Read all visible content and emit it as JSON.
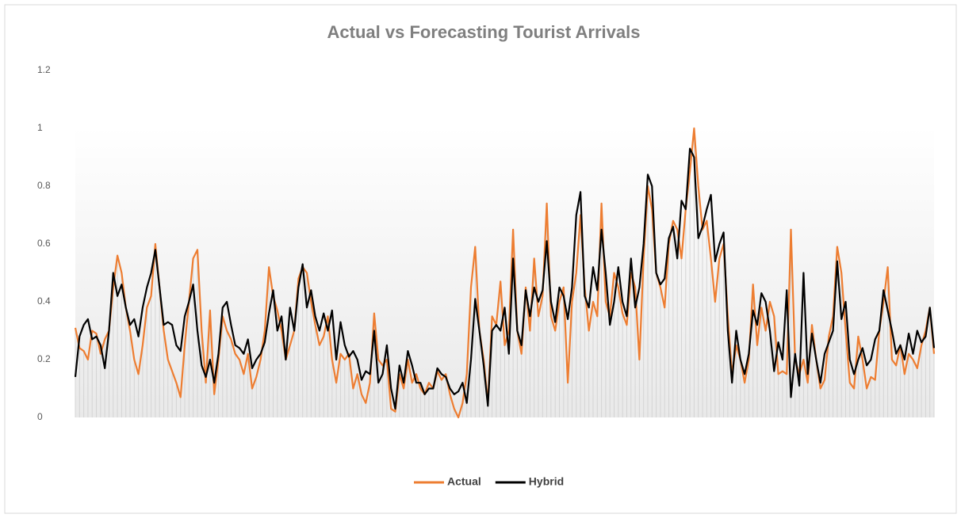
{
  "chart_data": {
    "type": "line",
    "title": "Actual vs Forecasting  Tourist Arrivals",
    "ylim": [
      0,
      1.2
    ],
    "yticks": [
      0,
      0.2,
      0.4,
      0.6,
      0.8,
      1,
      1.2
    ],
    "legend": "bottom",
    "series": [
      {
        "name": "Actual",
        "color": "#ed7d31",
        "values": [
          0.31,
          0.24,
          0.23,
          0.2,
          0.3,
          0.29,
          0.22,
          0.27,
          0.3,
          0.45,
          0.56,
          0.5,
          0.38,
          0.3,
          0.2,
          0.15,
          0.25,
          0.38,
          0.42,
          0.6,
          0.45,
          0.3,
          0.2,
          0.16,
          0.12,
          0.07,
          0.25,
          0.4,
          0.55,
          0.58,
          0.3,
          0.12,
          0.37,
          0.08,
          0.2,
          0.35,
          0.3,
          0.27,
          0.22,
          0.2,
          0.15,
          0.22,
          0.1,
          0.14,
          0.2,
          0.3,
          0.52,
          0.42,
          0.37,
          0.3,
          0.2,
          0.25,
          0.3,
          0.48,
          0.52,
          0.5,
          0.4,
          0.32,
          0.25,
          0.28,
          0.35,
          0.2,
          0.12,
          0.22,
          0.2,
          0.22,
          0.1,
          0.15,
          0.08,
          0.05,
          0.12,
          0.36,
          0.2,
          0.18,
          0.2,
          0.03,
          0.02,
          0.15,
          0.1,
          0.2,
          0.12,
          0.15,
          0.1,
          0.08,
          0.12,
          0.1,
          0.16,
          0.13,
          0.15,
          0.08,
          0.03,
          0.0,
          0.05,
          0.15,
          0.45,
          0.59,
          0.3,
          0.2,
          0.05,
          0.35,
          0.32,
          0.47,
          0.25,
          0.3,
          0.65,
          0.3,
          0.22,
          0.45,
          0.3,
          0.55,
          0.35,
          0.42,
          0.74,
          0.35,
          0.3,
          0.4,
          0.45,
          0.12,
          0.4,
          0.5,
          0.7,
          0.45,
          0.3,
          0.4,
          0.35,
          0.74,
          0.4,
          0.35,
          0.5,
          0.45,
          0.36,
          0.32,
          0.5,
          0.45,
          0.2,
          0.55,
          0.8,
          0.72,
          0.5,
          0.45,
          0.38,
          0.6,
          0.68,
          0.65,
          0.55,
          0.72,
          0.85,
          1.0,
          0.8,
          0.65,
          0.68,
          0.55,
          0.4,
          0.55,
          0.6,
          0.35,
          0.15,
          0.25,
          0.2,
          0.12,
          0.2,
          0.46,
          0.25,
          0.38,
          0.3,
          0.4,
          0.35,
          0.15,
          0.16,
          0.15,
          0.65,
          0.2,
          0.15,
          0.2,
          0.12,
          0.32,
          0.2,
          0.1,
          0.13,
          0.28,
          0.35,
          0.59,
          0.5,
          0.3,
          0.12,
          0.1,
          0.28,
          0.2,
          0.1,
          0.14,
          0.13,
          0.3,
          0.4,
          0.52,
          0.2,
          0.18,
          0.25,
          0.15,
          0.22,
          0.2,
          0.17,
          0.25,
          0.3,
          0.38,
          0.22
        ]
      },
      {
        "name": "Hybrid",
        "color": "#000000",
        "values": [
          0.14,
          0.28,
          0.32,
          0.34,
          0.27,
          0.28,
          0.25,
          0.17,
          0.3,
          0.5,
          0.42,
          0.46,
          0.38,
          0.32,
          0.34,
          0.28,
          0.38,
          0.45,
          0.5,
          0.58,
          0.45,
          0.32,
          0.33,
          0.32,
          0.25,
          0.23,
          0.35,
          0.4,
          0.46,
          0.3,
          0.18,
          0.14,
          0.2,
          0.12,
          0.22,
          0.38,
          0.4,
          0.32,
          0.25,
          0.24,
          0.22,
          0.27,
          0.17,
          0.2,
          0.22,
          0.26,
          0.36,
          0.44,
          0.3,
          0.35,
          0.2,
          0.38,
          0.3,
          0.45,
          0.53,
          0.38,
          0.44,
          0.35,
          0.3,
          0.36,
          0.3,
          0.37,
          0.2,
          0.33,
          0.25,
          0.21,
          0.23,
          0.2,
          0.13,
          0.16,
          0.15,
          0.3,
          0.12,
          0.15,
          0.25,
          0.1,
          0.03,
          0.18,
          0.12,
          0.23,
          0.18,
          0.12,
          0.12,
          0.08,
          0.1,
          0.1,
          0.17,
          0.15,
          0.14,
          0.1,
          0.08,
          0.09,
          0.12,
          0.05,
          0.2,
          0.41,
          0.3,
          0.18,
          0.04,
          0.3,
          0.32,
          0.3,
          0.38,
          0.22,
          0.55,
          0.3,
          0.25,
          0.44,
          0.35,
          0.45,
          0.4,
          0.44,
          0.61,
          0.4,
          0.33,
          0.45,
          0.42,
          0.34,
          0.45,
          0.7,
          0.78,
          0.42,
          0.38,
          0.52,
          0.44,
          0.65,
          0.5,
          0.32,
          0.4,
          0.52,
          0.4,
          0.35,
          0.55,
          0.38,
          0.45,
          0.6,
          0.84,
          0.8,
          0.5,
          0.46,
          0.48,
          0.62,
          0.66,
          0.55,
          0.75,
          0.72,
          0.93,
          0.9,
          0.62,
          0.66,
          0.72,
          0.77,
          0.54,
          0.6,
          0.64,
          0.3,
          0.12,
          0.3,
          0.2,
          0.15,
          0.22,
          0.37,
          0.32,
          0.43,
          0.4,
          0.3,
          0.16,
          0.26,
          0.2,
          0.44,
          0.07,
          0.22,
          0.11,
          0.5,
          0.15,
          0.29,
          0.2,
          0.12,
          0.22,
          0.26,
          0.3,
          0.54,
          0.34,
          0.4,
          0.2,
          0.15,
          0.2,
          0.24,
          0.18,
          0.2,
          0.27,
          0.3,
          0.44,
          0.37,
          0.3,
          0.22,
          0.25,
          0.2,
          0.29,
          0.22,
          0.3,
          0.26,
          0.28,
          0.38,
          0.24
        ]
      }
    ]
  }
}
